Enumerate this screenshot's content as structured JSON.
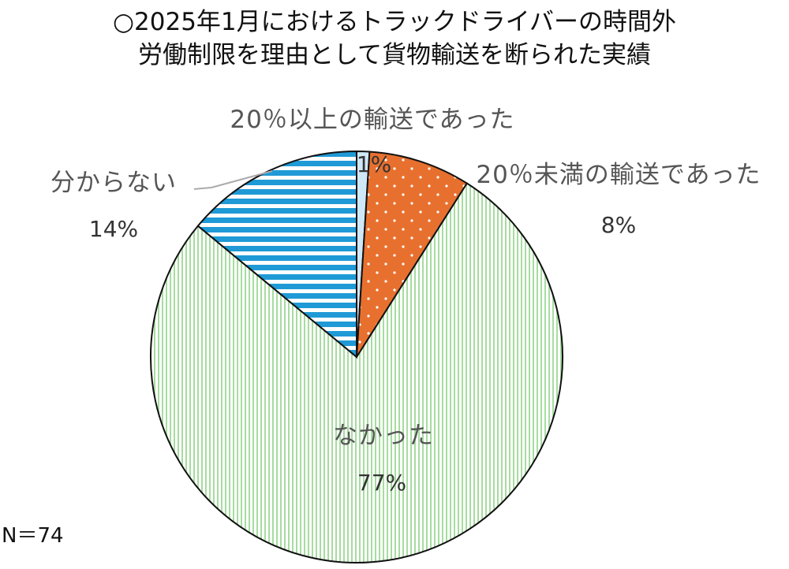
{
  "chart_data": {
    "type": "pie",
    "title": [
      "○2025年1月におけるトラックドライバーの時間外",
      "労働制限を理由として貨物輸送を断られた実績"
    ],
    "slices": [
      {
        "name": "20％以上の輸送であった",
        "value": 1,
        "label": "1%",
        "color": "#cfe8f8",
        "pattern": "light-blue-solid"
      },
      {
        "name": "20％未満の輸送であった",
        "value": 8,
        "label": "8%",
        "color": "#e8702e",
        "pattern": "orange-dots"
      },
      {
        "name": "なかった",
        "value": 77,
        "label": "77%",
        "color": "#a6dca0",
        "pattern": "green-vertical-stripes"
      },
      {
        "name": "分からない",
        "value": 14,
        "label": "14%",
        "color": "#1f9ad6",
        "pattern": "blue-horizontal-stripes"
      }
    ],
    "start": "12 o'clock",
    "direction": "clockwise",
    "legend": "none",
    "note": "N＝74"
  }
}
